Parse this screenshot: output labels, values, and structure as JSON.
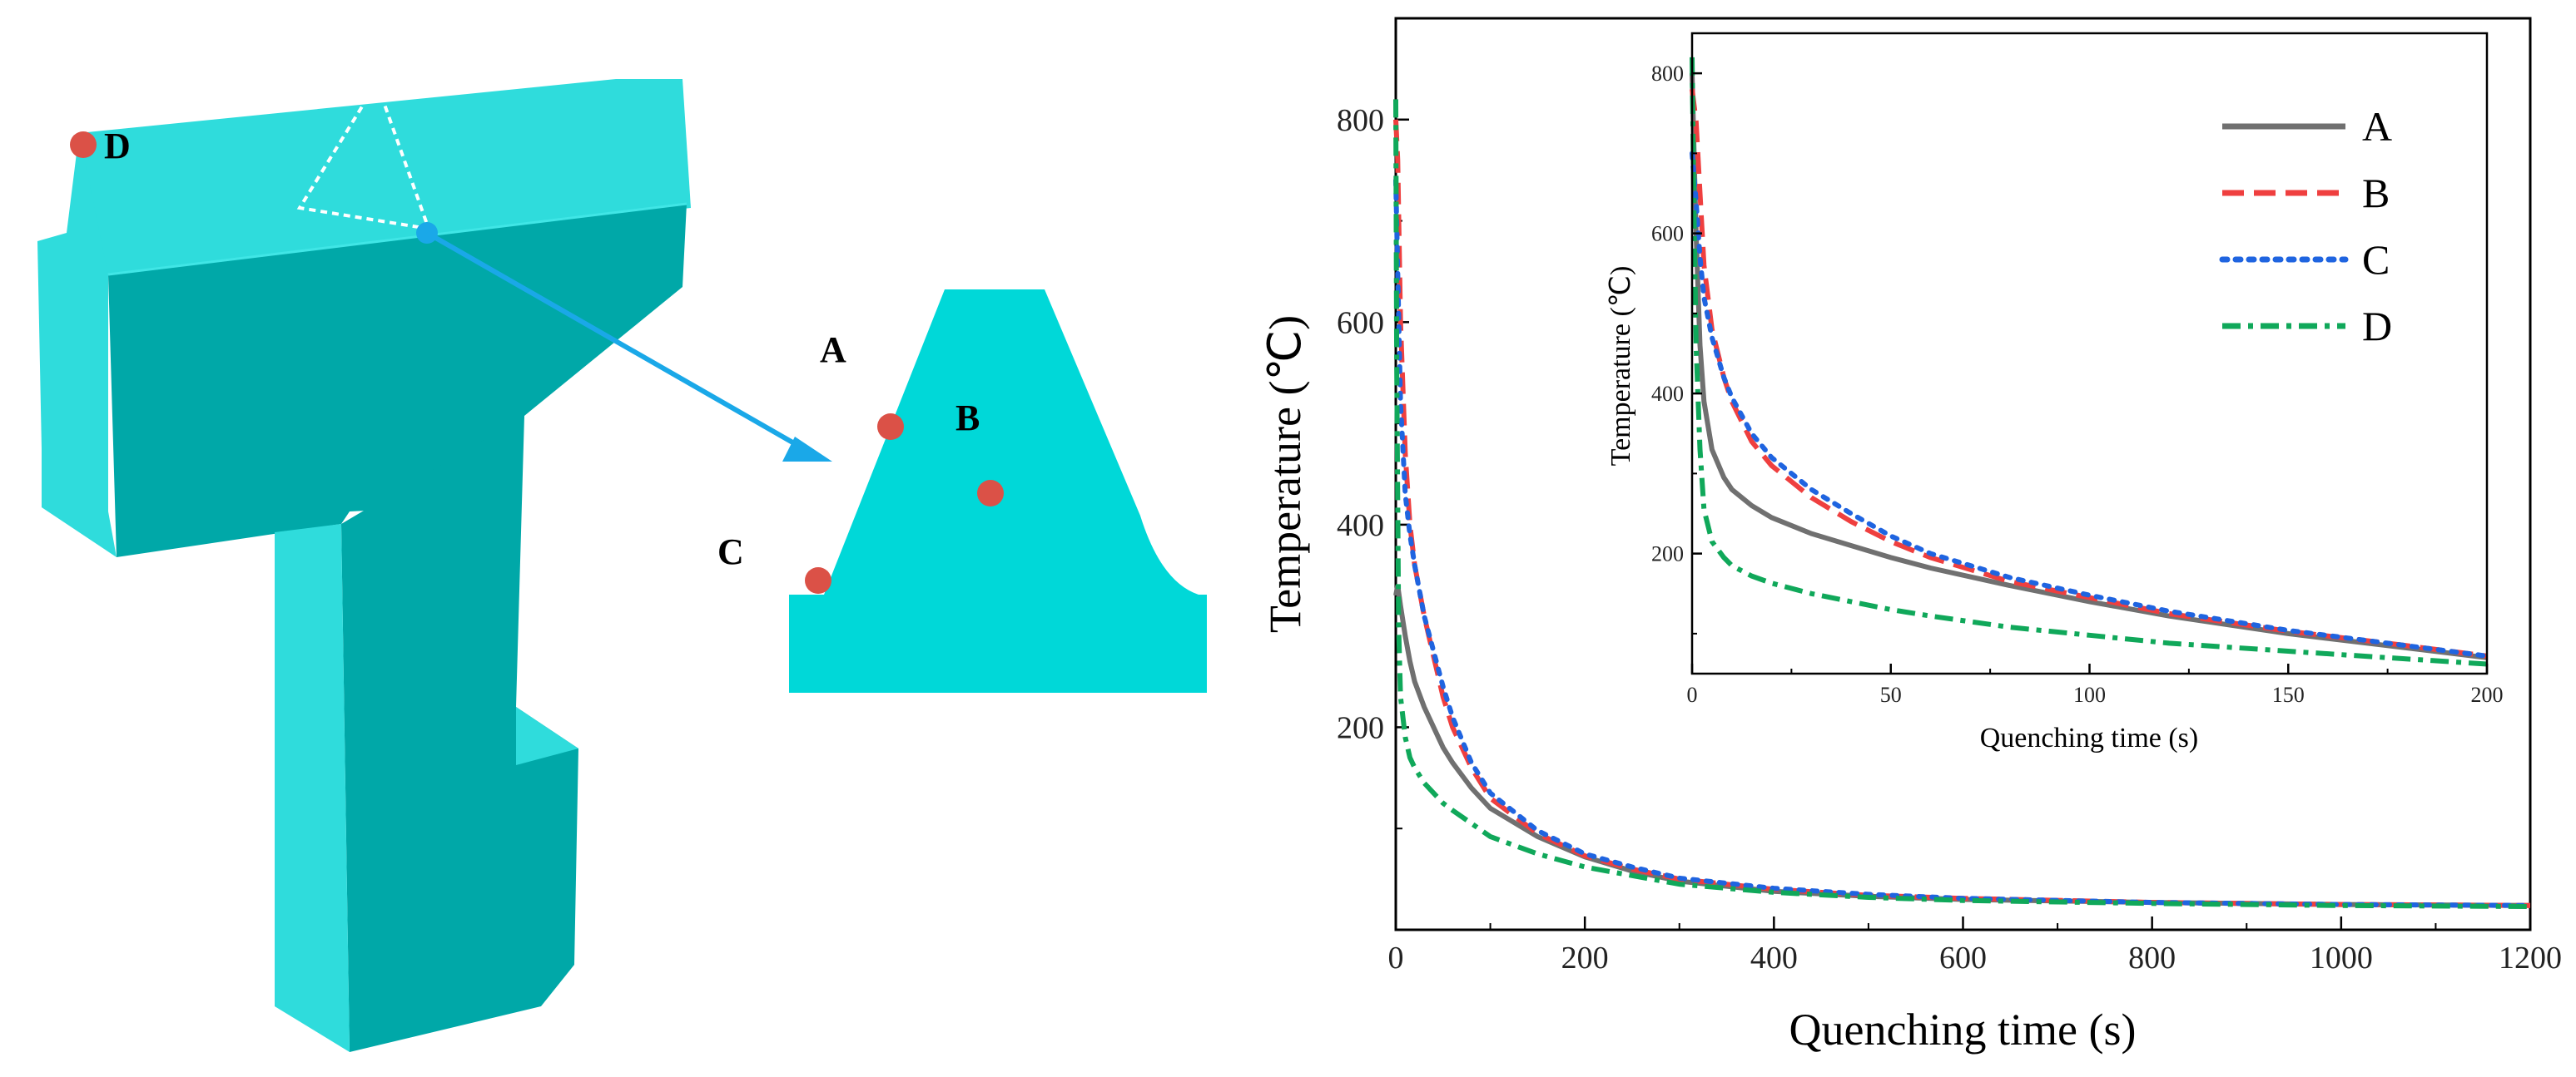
{
  "figure": {
    "labels": {
      "A": "A",
      "B": "B",
      "C": "C",
      "D": "D"
    },
    "colors": {
      "model_light": "#2fdcdc",
      "model_dark": "#00a8a8",
      "model_side": "#00c4c4",
      "point": "#db5147",
      "probe": "#1aa8e8"
    }
  },
  "chart_data": [
    {
      "type": "line",
      "name": "main",
      "xlabel": "Quenching time (s)",
      "ylabel": "Temperature (℃)",
      "xlim": [
        0,
        1200
      ],
      "ylim": [
        0,
        900
      ],
      "xticks": [
        0,
        200,
        400,
        600,
        800,
        1000,
        1200
      ],
      "yticks": [
        200,
        400,
        600,
        800
      ],
      "series": [
        {
          "name": "A",
          "color": "#707070",
          "dash": "solid",
          "x": [
            0,
            2,
            5,
            10,
            15,
            20,
            30,
            40,
            50,
            60,
            80,
            100,
            150,
            200,
            250,
            300,
            400,
            500,
            600,
            800,
            1000,
            1200
          ],
          "y": [
            330,
            340,
            320,
            290,
            265,
            245,
            220,
            200,
            180,
            165,
            140,
            120,
            92,
            72,
            58,
            48,
            38,
            33,
            30,
            27,
            25,
            24
          ]
        },
        {
          "name": "B",
          "color": "#ef3f3f",
          "dash": "dashed",
          "x": [
            0,
            2,
            5,
            10,
            15,
            20,
            30,
            40,
            50,
            60,
            80,
            100,
            150,
            200,
            250,
            300,
            400,
            500,
            600,
            800,
            1000,
            1200
          ],
          "y": [
            800,
            760,
            600,
            470,
            400,
            360,
            310,
            270,
            230,
            200,
            160,
            130,
            95,
            73,
            60,
            50,
            40,
            34,
            31,
            27,
            25,
            24
          ]
        },
        {
          "name": "C",
          "color": "#1f64e0",
          "dash": "dotted",
          "x": [
            0,
            2,
            5,
            10,
            15,
            20,
            30,
            40,
            50,
            60,
            80,
            100,
            150,
            200,
            250,
            300,
            400,
            500,
            600,
            800,
            1000,
            1200
          ],
          "y": [
            740,
            650,
            520,
            430,
            390,
            360,
            310,
            275,
            240,
            210,
            165,
            135,
            98,
            75,
            62,
            51,
            41,
            35,
            31,
            27,
            25,
            24
          ]
        },
        {
          "name": "D",
          "color": "#10a85a",
          "dash": "dashdot",
          "x": [
            0,
            1,
            3,
            5,
            10,
            15,
            20,
            30,
            40,
            50,
            60,
            80,
            100,
            150,
            200,
            300,
            400,
            500,
            600,
            800,
            1000,
            1200
          ],
          "y": [
            820,
            560,
            300,
            230,
            190,
            170,
            160,
            145,
            135,
            125,
            118,
            105,
            92,
            75,
            62,
            45,
            37,
            32,
            29,
            26,
            24,
            23
          ]
        }
      ]
    },
    {
      "type": "line",
      "name": "inset",
      "xlabel": "Quenching time (s)",
      "ylabel": "Temperature (℃)",
      "xlim": [
        0,
        200
      ],
      "ylim": [
        50,
        850
      ],
      "xticks": [
        0,
        50,
        100,
        150,
        200
      ],
      "yticks": [
        200,
        400,
        600,
        800
      ],
      "legend": "top-right",
      "series": [
        {
          "name": "A",
          "color": "#707070",
          "dash": "solid",
          "x": [
            0,
            1,
            2,
            3,
            5,
            8,
            10,
            15,
            20,
            30,
            40,
            50,
            60,
            80,
            100,
            120,
            150,
            175,
            200
          ],
          "y": [
            800,
            600,
            460,
            390,
            330,
            295,
            280,
            260,
            245,
            225,
            210,
            195,
            182,
            160,
            140,
            122,
            100,
            85,
            70
          ]
        },
        {
          "name": "B",
          "color": "#ef3f3f",
          "dash": "dashed",
          "x": [
            0,
            1,
            2,
            3,
            5,
            8,
            10,
            15,
            20,
            30,
            40,
            50,
            60,
            80,
            100,
            120,
            150,
            175,
            200
          ],
          "y": [
            780,
            740,
            650,
            560,
            480,
            420,
            390,
            340,
            310,
            270,
            240,
            215,
            195,
            165,
            145,
            125,
            103,
            88,
            72
          ]
        },
        {
          "name": "C",
          "color": "#1f64e0",
          "dash": "dotted",
          "x": [
            0,
            1,
            2,
            3,
            5,
            8,
            10,
            15,
            20,
            30,
            40,
            50,
            60,
            80,
            100,
            120,
            150,
            175,
            200
          ],
          "y": [
            700,
            640,
            570,
            520,
            470,
            420,
            395,
            350,
            320,
            280,
            250,
            222,
            200,
            170,
            148,
            128,
            104,
            88,
            72
          ]
        },
        {
          "name": "D",
          "color": "#10a85a",
          "dash": "dashdot",
          "x": [
            0,
            0.5,
            1,
            2,
            3,
            5,
            8,
            10,
            15,
            20,
            30,
            40,
            50,
            60,
            80,
            100,
            120,
            150,
            175,
            200
          ],
          "y": [
            820,
            620,
            460,
            330,
            255,
            215,
            195,
            185,
            172,
            163,
            150,
            140,
            130,
            122,
            108,
            98,
            88,
            78,
            70,
            62
          ]
        }
      ]
    }
  ]
}
